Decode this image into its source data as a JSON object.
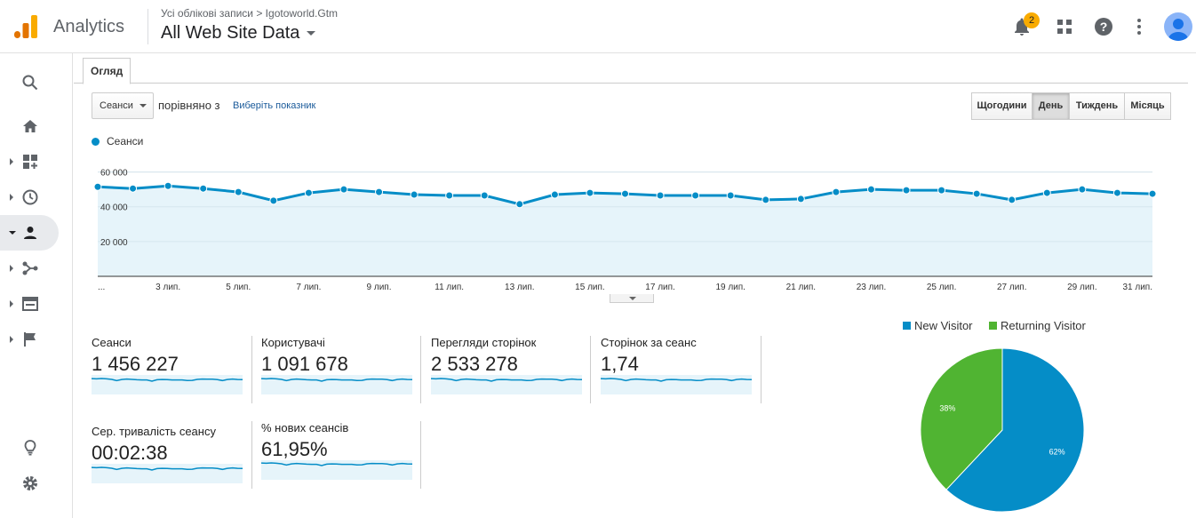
{
  "header": {
    "app_name": "Analytics",
    "breadcrumb": "Усі облікові записи > Igotoworld.Gtm",
    "property": "All Web Site Data",
    "notifications_count": "2",
    "icons": [
      "notifications-icon",
      "apps-icon",
      "help-icon",
      "more-vert-icon",
      "account-avatar"
    ]
  },
  "sidebar": {
    "items": [
      {
        "icon": "search-icon"
      },
      {
        "icon": "home-icon"
      },
      {
        "icon": "customization-icon"
      },
      {
        "icon": "realtime-clock-icon"
      },
      {
        "icon": "audience-person-icon",
        "active": true
      },
      {
        "icon": "acquisition-icon"
      },
      {
        "icon": "behavior-icon"
      },
      {
        "icon": "conversions-flag-icon"
      },
      {
        "icon": "discover-lightbulb-icon"
      },
      {
        "icon": "admin-gear-icon"
      }
    ]
  },
  "tabs": {
    "overview": "Огляд"
  },
  "controls": {
    "metric_select": "Сеанси",
    "compare_text": "порівняно з",
    "pick_metric_link": "Виберіть показник",
    "granularity": [
      {
        "label": "Щогодини",
        "active": false
      },
      {
        "label": "День",
        "active": true
      },
      {
        "label": "Тиждень",
        "active": false
      },
      {
        "label": "Місяць",
        "active": false
      }
    ]
  },
  "chart_data": [
    {
      "type": "area",
      "series": [
        {
          "name": "Сеанси",
          "color": "#058dc7"
        }
      ],
      "y_tick_labels": [
        "60 000",
        "40 000",
        "20 000"
      ],
      "y_ticks": [
        60000,
        40000,
        20000
      ],
      "ylim": [
        0,
        69000
      ],
      "x_tick_labels": [
        "...",
        "3 лип.",
        "5 лип.",
        "7 лип.",
        "9 лип.",
        "11 лип.",
        "13 лип.",
        "15 лип.",
        "17 лип.",
        "19 лип.",
        "21 лип.",
        "23 лип.",
        "25 лип.",
        "27 лип.",
        "29 лип.",
        "31 лип."
      ],
      "x_days": [
        1,
        2,
        3,
        4,
        5,
        6,
        7,
        8,
        9,
        10,
        11,
        12,
        13,
        14,
        15,
        16,
        17,
        18,
        19,
        20,
        21,
        22,
        23,
        24,
        25,
        26,
        27,
        28,
        29,
        30,
        31
      ],
      "values": [
        51500,
        50500,
        52000,
        50500,
        48500,
        43500,
        48000,
        50000,
        48500,
        47000,
        46500,
        46500,
        41500,
        47000,
        48000,
        47500,
        46500,
        46500,
        46500,
        44000,
        44500,
        48500,
        50000,
        49500,
        49500,
        47500,
        44000,
        48000,
        50000,
        48000,
        47500
      ]
    },
    {
      "type": "pie",
      "legend": [
        {
          "name": "New Visitor",
          "color": "#058dc7"
        },
        {
          "name": "Returning Visitor",
          "color": "#50b432"
        }
      ],
      "slices": [
        {
          "name": "New Visitor",
          "value": 62,
          "label": "62%",
          "color": "#058dc7"
        },
        {
          "name": "Returning Visitor",
          "value": 38,
          "label": "38%",
          "color": "#50b432"
        }
      ]
    }
  ],
  "scorecards": [
    {
      "label": "Сеанси",
      "value": "1 456 227"
    },
    {
      "label": "Користувачі",
      "value": "1 091 678"
    },
    {
      "label": "Перегляди сторінок",
      "value": "2 533 278"
    },
    {
      "label": "Сторінок за сеанс",
      "value": "1,74"
    },
    {
      "label": "Сер. тривалість сеансу",
      "value": "00:02:38"
    },
    {
      "label": "% нових сеансів",
      "value": "61,95%"
    }
  ]
}
